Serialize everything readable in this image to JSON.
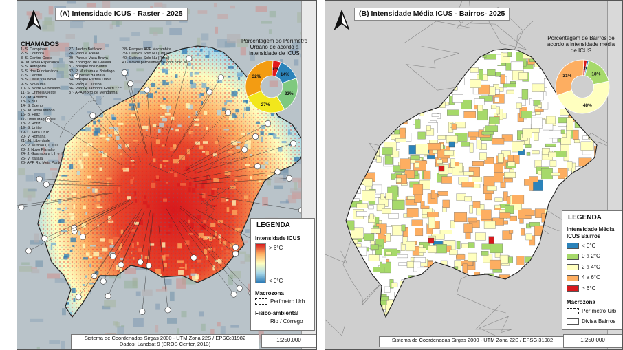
{
  "panel_a": {
    "title": "(A) Intensidade ICUS - Raster - 2025",
    "chamados_title": "CHAMADOS",
    "chamados_col1": [
      "1- S. Campinas",
      "2- S. Coimbra",
      "3- S. Centro-Oeste",
      "4- Jd. Nova Esperança",
      "5- S. Aeroporto",
      "6- S. dos Funcionários",
      "7- S. Central",
      "8- S. Leste Vila Nova",
      "9- S. Nova Vila",
      "10- S. Norte Ferroviário",
      "11- S. Criméia Oeste",
      "12- Jd. América",
      "13- S. Sul",
      "14- S. Bueno",
      "15- Jd. Novo Mundo",
      "16- B. Feliz",
      "17- Urias Magalhães",
      "18- V. Roriz",
      "19- S. União",
      "19- C. Vera Cruz",
      "20- V. Romana",
      "21- Jd. Liberdade",
      "22- V. Mutirão I, II e III",
      "23- J. Novo Planalto",
      "24- J. Guanabara I, II e III",
      "25- V. Itatiaia",
      "26- APP Rio Meia Ponte"
    ],
    "chamados_col2": [
      "27- Jardim Botânico",
      "28- Parque Areião",
      "29- Parque Vaca Brava",
      "30- Zoológico de Goiânia",
      "31- Bosque dos Buritis",
      "32- P. Mutirama e Botafogo",
      "33- P. Brisas da Mata",
      "34- Bosque Estrela Dalva",
      "35- Parque Curitiba",
      "36- Parque Tamboril Grifith",
      "37- APA Morro de Mendanha"
    ],
    "chamados_col3": [
      "38- Parques APP Macambira",
      "39- Cultivos Solo Nu (Urb.)",
      "40- Cultivos Solo Nu (Rural)",
      "41- Novos parcelamentos com Solo Nu"
    ],
    "pie_title": "Porcentagem do Perímetro Urbano de acordo a intensidade de ICUS",
    "pie": [
      {
        "label": "5%",
        "value": 5,
        "color": "#e31a1c"
      },
      {
        "label": "14%",
        "value": 14,
        "color": "#2b83ba"
      },
      {
        "label": "22%",
        "value": 22,
        "color": "#7fc97f"
      },
      {
        "label": "27%",
        "value": 27,
        "color": "#f2e71c"
      },
      {
        "label": "32%",
        "value": 32,
        "color": "#f39c12"
      }
    ],
    "legend": {
      "title": "LEGENDA",
      "raster_title": "Intensidade ICUS",
      "high": "> 6°C",
      "low": "< 0°C",
      "macrozona_title": "Macrozona",
      "perimetro": "Perímetro Urb.",
      "fisico_title": "Físico-ambiental",
      "rio": "Rio / Córrego"
    },
    "footer_line1": "Sistema de Coordenadas Sirgas 2000 - UTM Zona 22S / EPSG:31982",
    "footer_line2": "Dados: Landsat 9 (EROS Center, 2013)",
    "scale": "1:250.000"
  },
  "panel_b": {
    "title": "(B) Intensidade Média ICUS - Bairros- 2025",
    "pie_title": "Porcentagem de Bairros de acordo a intensidade média de ICUS",
    "pie": [
      {
        "label": "2%",
        "value": 2,
        "color": "#d7191c"
      },
      {
        "label": "1%",
        "value": 1,
        "color": "#2b83ba"
      },
      {
        "label": "18%",
        "value": 18,
        "color": "#a6d96a"
      },
      {
        "label": "48%",
        "value": 48,
        "color": "#ffffbf"
      },
      {
        "label": "31%",
        "value": 31,
        "color": "#fdae61"
      }
    ],
    "legend": {
      "title": "LEGENDA",
      "subtitle": "Intensidade Média ICUS Bairros",
      "classes": [
        {
          "label": "< 0°C",
          "color": "#2b83ba"
        },
        {
          "label": "0 a 2°C",
          "color": "#a6d96a"
        },
        {
          "label": "2 a 4°C",
          "color": "#ffffbf"
        },
        {
          "label": "4 a 6°C",
          "color": "#fdae61"
        },
        {
          "label": "> 6°C",
          "color": "#d7191c"
        }
      ],
      "macrozona_title": "Macrozona",
      "perimetro": "Perímetro Urb.",
      "divisa": "Divisa Bairros"
    },
    "footer_line1": "Sistema de Coordenadas Sirgas 2000 - UTM Zona 22S / EPSG:31982",
    "scale": "1:250.000"
  }
}
